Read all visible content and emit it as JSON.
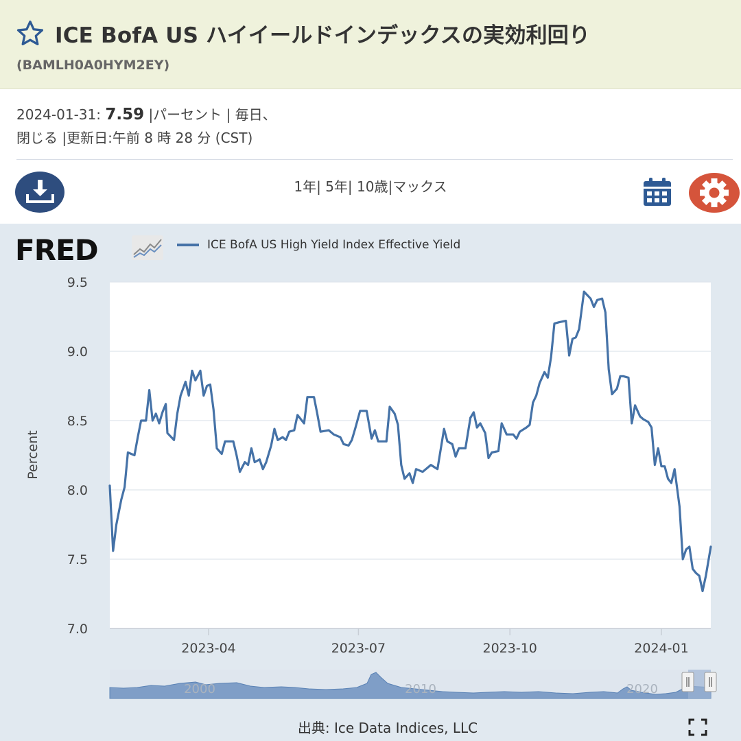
{
  "header": {
    "title": "ICE BofA US ハイイールドインデックスの実効利回り",
    "series_id": "(BAMLH0A0HYM2EY)"
  },
  "meta": {
    "date": "2024-01-31:",
    "value": "7.59",
    "units": "|パーセント",
    "sep1": "|",
    "freq": "毎日、",
    "line2": "閉じる |更新日:午前 8 時 28 分 (CST)"
  },
  "toolbar": {
    "range_1y": "1年",
    "range_5y": "5年",
    "range_10y": "10歳",
    "range_max": "マックス",
    "sep": "|"
  },
  "legend": {
    "logo_text": "FRED",
    "series_name": "ICE BofA US High Yield Index Effective Yield"
  },
  "source": "出典: Ice Data Indices, LLC",
  "colors": {
    "series": "#4572a7",
    "accent_blue": "#2e4d7e",
    "accent_red": "#d5543b"
  },
  "chart_data": {
    "type": "line",
    "ylabel": "Percent",
    "ylim": [
      7.0,
      9.5
    ],
    "y_ticks": [
      "7.0",
      "7.5",
      "8.0",
      "8.5",
      "9.0",
      "9.5"
    ],
    "x_ticks": [
      "2023-04",
      "2023-07",
      "2023-10",
      "2024-01"
    ],
    "x_tick_dates": [
      "2023-04-01",
      "2023-07-01",
      "2023-10-01",
      "2024-01-01"
    ],
    "x_start": "2023-01-31",
    "x_end": "2024-01-31",
    "navigator_labels": [
      "2000",
      "2010",
      "2020"
    ],
    "series": [
      {
        "name": "ICE BofA US High Yield Index Effective Yield",
        "points": [
          [
            "2023-01-31",
            8.03
          ],
          [
            "2023-02-02",
            7.56
          ],
          [
            "2023-02-04",
            7.75
          ],
          [
            "2023-02-07",
            7.93
          ],
          [
            "2023-02-09",
            8.02
          ],
          [
            "2023-02-11",
            8.27
          ],
          [
            "2023-02-15",
            8.25
          ],
          [
            "2023-02-17",
            8.38
          ],
          [
            "2023-02-19",
            8.5
          ],
          [
            "2023-02-22",
            8.5
          ],
          [
            "2023-02-24",
            8.72
          ],
          [
            "2023-02-26",
            8.5
          ],
          [
            "2023-02-28",
            8.55
          ],
          [
            "2023-03-02",
            8.48
          ],
          [
            "2023-03-04",
            8.56
          ],
          [
            "2023-03-06",
            8.62
          ],
          [
            "2023-03-07",
            8.41
          ],
          [
            "2023-03-11",
            8.36
          ],
          [
            "2023-03-13",
            8.55
          ],
          [
            "2023-03-15",
            8.68
          ],
          [
            "2023-03-18",
            8.78
          ],
          [
            "2023-03-20",
            8.68
          ],
          [
            "2023-03-22",
            8.86
          ],
          [
            "2023-03-24",
            8.79
          ],
          [
            "2023-03-27",
            8.86
          ],
          [
            "2023-03-29",
            8.68
          ],
          [
            "2023-03-31",
            8.75
          ],
          [
            "2023-04-02",
            8.76
          ],
          [
            "2023-04-04",
            8.58
          ],
          [
            "2023-04-06",
            8.3
          ],
          [
            "2023-04-09",
            8.26
          ],
          [
            "2023-04-11",
            8.35
          ],
          [
            "2023-04-16",
            8.35
          ],
          [
            "2023-04-18",
            8.25
          ],
          [
            "2023-04-20",
            8.13
          ],
          [
            "2023-04-23",
            8.2
          ],
          [
            "2023-04-25",
            8.18
          ],
          [
            "2023-04-27",
            8.3
          ],
          [
            "2023-04-29",
            8.2
          ],
          [
            "2023-05-02",
            8.22
          ],
          [
            "2023-05-04",
            8.15
          ],
          [
            "2023-05-06",
            8.2
          ],
          [
            "2023-05-09",
            8.32
          ],
          [
            "2023-05-11",
            8.44
          ],
          [
            "2023-05-13",
            8.36
          ],
          [
            "2023-05-16",
            8.38
          ],
          [
            "2023-05-18",
            8.36
          ],
          [
            "2023-05-20",
            8.42
          ],
          [
            "2023-05-23",
            8.43
          ],
          [
            "2023-05-25",
            8.54
          ],
          [
            "2023-05-29",
            8.48
          ],
          [
            "2023-05-31",
            8.67
          ],
          [
            "2023-06-04",
            8.67
          ],
          [
            "2023-06-06",
            8.55
          ],
          [
            "2023-06-08",
            8.42
          ],
          [
            "2023-06-13",
            8.43
          ],
          [
            "2023-06-16",
            8.4
          ],
          [
            "2023-06-20",
            8.38
          ],
          [
            "2023-06-22",
            8.33
          ],
          [
            "2023-06-25",
            8.32
          ],
          [
            "2023-06-27",
            8.36
          ],
          [
            "2023-06-29",
            8.44
          ],
          [
            "2023-07-02",
            8.57
          ],
          [
            "2023-07-06",
            8.57
          ],
          [
            "2023-07-09",
            8.37
          ],
          [
            "2023-07-11",
            8.43
          ],
          [
            "2023-07-13",
            8.35
          ],
          [
            "2023-07-18",
            8.35
          ],
          [
            "2023-07-20",
            8.6
          ],
          [
            "2023-07-23",
            8.55
          ],
          [
            "2023-07-25",
            8.47
          ],
          [
            "2023-07-27",
            8.18
          ],
          [
            "2023-07-29",
            8.08
          ],
          [
            "2023-08-01",
            8.12
          ],
          [
            "2023-08-03",
            8.05
          ],
          [
            "2023-08-05",
            8.15
          ],
          [
            "2023-08-09",
            8.13
          ],
          [
            "2023-08-14",
            8.18
          ],
          [
            "2023-08-18",
            8.15
          ],
          [
            "2023-08-22",
            8.44
          ],
          [
            "2023-08-24",
            8.35
          ],
          [
            "2023-08-27",
            8.33
          ],
          [
            "2023-08-29",
            8.24
          ],
          [
            "2023-08-31",
            8.3
          ],
          [
            "2023-09-04",
            8.3
          ],
          [
            "2023-09-07",
            8.52
          ],
          [
            "2023-09-09",
            8.56
          ],
          [
            "2023-09-11",
            8.45
          ],
          [
            "2023-09-13",
            8.48
          ],
          [
            "2023-09-16",
            8.41
          ],
          [
            "2023-09-18",
            8.23
          ],
          [
            "2023-09-20",
            8.27
          ],
          [
            "2023-09-24",
            8.28
          ],
          [
            "2023-09-26",
            8.48
          ],
          [
            "2023-09-29",
            8.4
          ],
          [
            "2023-10-03",
            8.4
          ],
          [
            "2023-10-05",
            8.37
          ],
          [
            "2023-10-07",
            8.42
          ],
          [
            "2023-10-11",
            8.45
          ],
          [
            "2023-10-13",
            8.47
          ],
          [
            "2023-10-15",
            8.63
          ],
          [
            "2023-10-17",
            8.68
          ],
          [
            "2023-10-19",
            8.77
          ],
          [
            "2023-10-22",
            8.85
          ],
          [
            "2023-10-24",
            8.81
          ],
          [
            "2023-10-26",
            8.96
          ],
          [
            "2023-10-28",
            9.2
          ],
          [
            "2023-10-31",
            9.21
          ],
          [
            "2023-11-04",
            9.22
          ],
          [
            "2023-11-06",
            8.97
          ],
          [
            "2023-11-08",
            9.09
          ],
          [
            "2023-11-10",
            9.1
          ],
          [
            "2023-11-12",
            9.16
          ],
          [
            "2023-11-15",
            9.43
          ],
          [
            "2023-11-19",
            9.38
          ],
          [
            "2023-11-21",
            9.32
          ],
          [
            "2023-11-23",
            9.37
          ],
          [
            "2023-11-26",
            9.38
          ],
          [
            "2023-11-28",
            9.28
          ],
          [
            "2023-11-30",
            8.87
          ],
          [
            "2023-12-02",
            8.69
          ],
          [
            "2023-12-05",
            8.73
          ],
          [
            "2023-12-07",
            8.82
          ],
          [
            "2023-12-09",
            8.82
          ],
          [
            "2023-12-12",
            8.81
          ],
          [
            "2023-12-14",
            8.48
          ],
          [
            "2023-12-16",
            8.61
          ],
          [
            "2023-12-19",
            8.53
          ],
          [
            "2023-12-21",
            8.51
          ],
          [
            "2023-12-24",
            8.49
          ],
          [
            "2023-12-26",
            8.45
          ],
          [
            "2023-12-28",
            8.18
          ],
          [
            "2023-12-30",
            8.3
          ],
          [
            "2024-01-01",
            8.17
          ],
          [
            "2024-01-03",
            8.17
          ],
          [
            "2024-01-05",
            8.08
          ],
          [
            "2024-01-07",
            8.05
          ],
          [
            "2024-01-09",
            8.15
          ],
          [
            "2024-01-12",
            7.88
          ],
          [
            "2024-01-14",
            7.5
          ],
          [
            "2024-01-16",
            7.57
          ],
          [
            "2024-01-18",
            7.59
          ],
          [
            "2024-01-20",
            7.43
          ],
          [
            "2024-01-22",
            7.4
          ],
          [
            "2024-01-24",
            7.38
          ],
          [
            "2024-01-26",
            7.27
          ],
          [
            "2024-01-28",
            7.38
          ],
          [
            "2024-01-31",
            7.59
          ]
        ]
      }
    ]
  }
}
